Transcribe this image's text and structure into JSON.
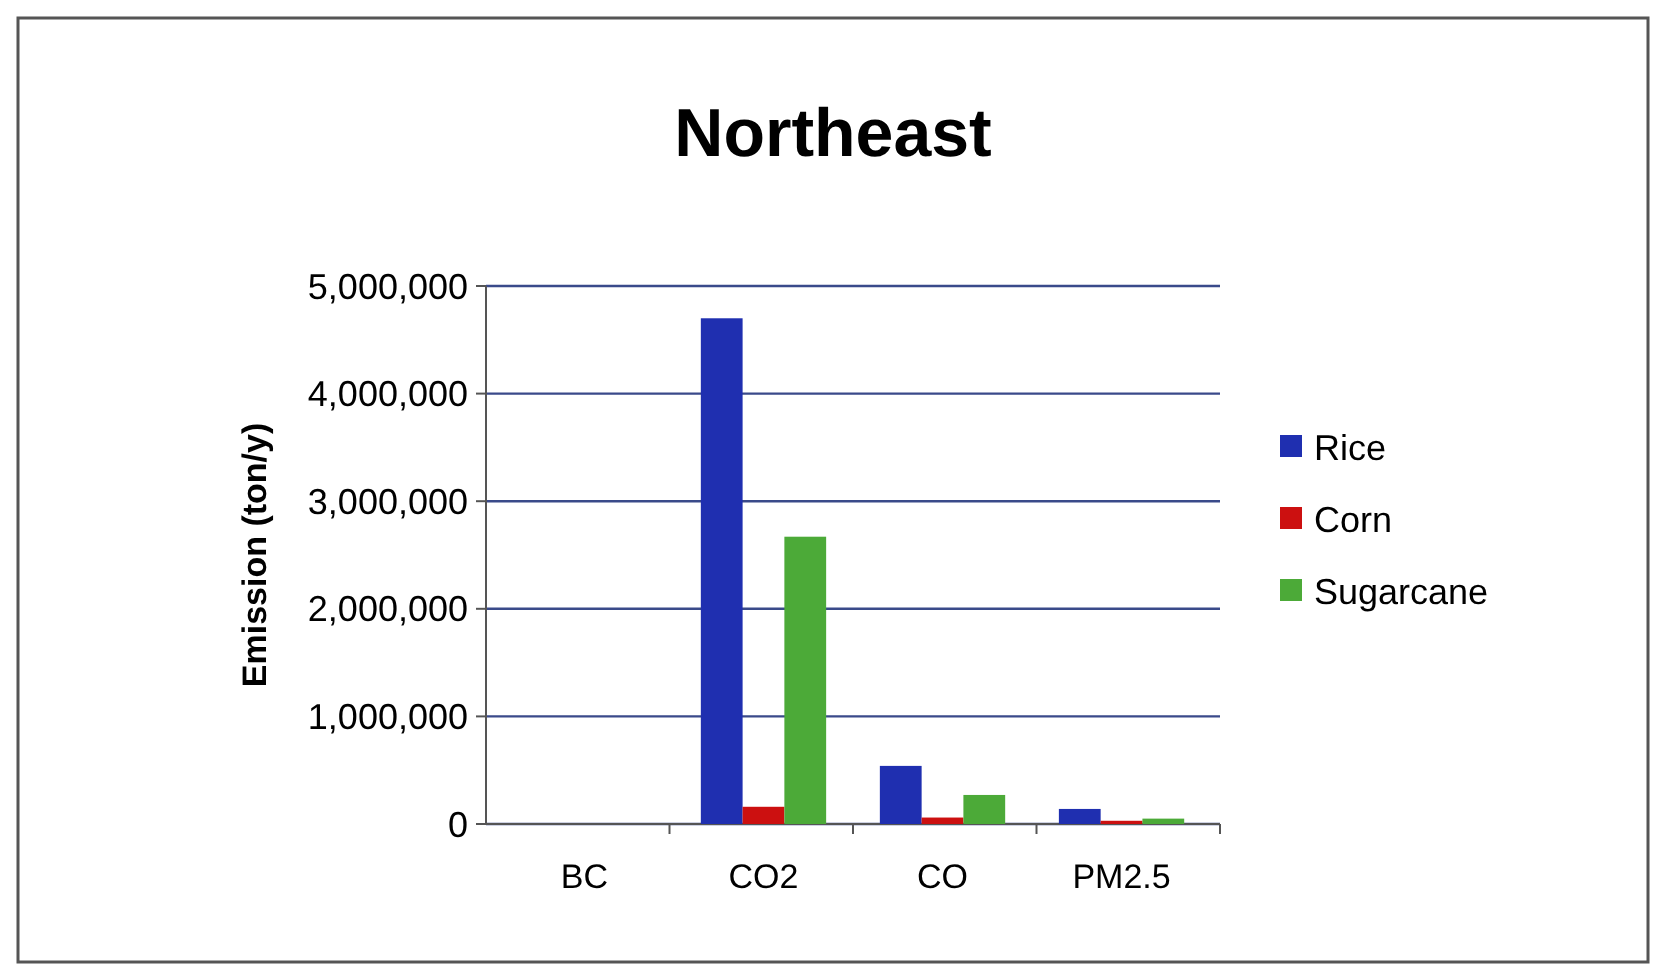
{
  "chart_data": {
    "type": "bar",
    "title": "Northeast",
    "ylabel": "Emission (ton/y)",
    "categories": [
      "BC",
      "CO2",
      "CO",
      "PM2.5"
    ],
    "series": [
      {
        "name": "Rice",
        "color": "#1f2fb0",
        "values": [
          null,
          4700000,
          540000,
          140000
        ]
      },
      {
        "name": "Corn",
        "color": "#cc1010",
        "values": [
          null,
          160000,
          60000,
          30000
        ]
      },
      {
        "name": "Sugarcane",
        "color": "#4caa38",
        "values": [
          null,
          2670000,
          270000,
          50000
        ]
      }
    ],
    "ylim": [
      0,
      5000000
    ],
    "yticks": [
      {
        "value": 0,
        "label": "0"
      },
      {
        "value": 1000000,
        "label": "1,000,000"
      },
      {
        "value": 2000000,
        "label": "2,000,000"
      },
      {
        "value": 3000000,
        "label": "3,000,000"
      },
      {
        "value": 4000000,
        "label": "4,000,000"
      },
      {
        "value": 5000000,
        "label": "5,000,000"
      }
    ],
    "grid": "y",
    "legend": "right"
  }
}
